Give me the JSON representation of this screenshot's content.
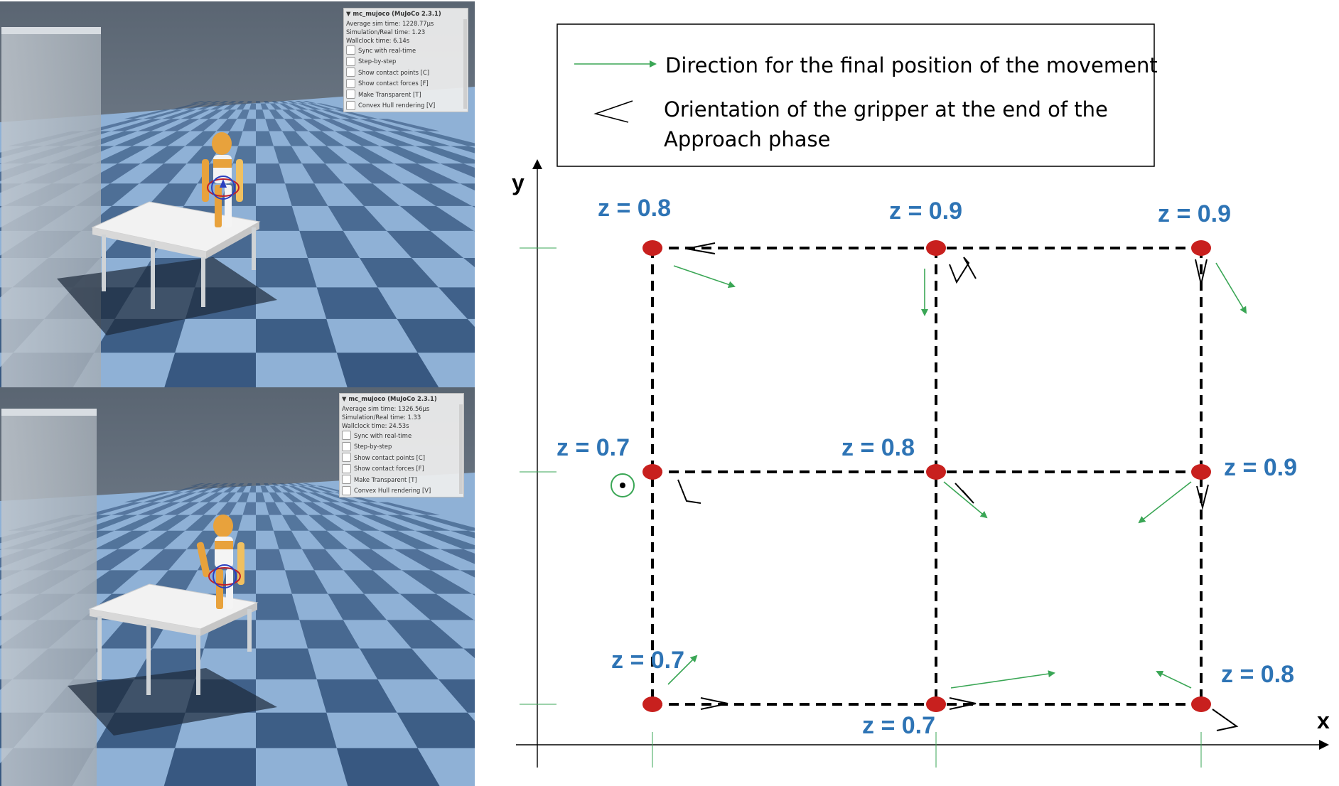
{
  "sim_panels": [
    {
      "title": "mc_mujoco (MuJoCo 2.3.1)",
      "stats": [
        "Average sim time: 1228.77µs",
        "Simulation/Real time: 1.23",
        "Wallclock time: 6.14s"
      ],
      "options": [
        "Sync with real-time",
        "Step-by-step",
        "Show contact points [C]",
        "Show contact forces [F]",
        "Make Transparent [T]",
        "Convex Hull rendering [V]"
      ]
    },
    {
      "title": "mc_mujoco (MuJoCo 2.3.1)",
      "stats": [
        "Average sim time: 1326.56µs",
        "Simulation/Real time: 1.33",
        "Wallclock time: 24.53s"
      ],
      "options": [
        "Sync with real-time",
        "Step-by-step",
        "Show contact points [C]",
        "Show contact forces [F]",
        "Make Transparent [T]",
        "Convex Hull rendering [V]"
      ]
    }
  ],
  "legend": {
    "arrow_text": "Direction for the final position of the movement",
    "gripper_text_line1": "Orientation of the gripper at the end of the",
    "gripper_text_line2": "Approach phase"
  },
  "axes": {
    "x_label": "x",
    "y_label": "y"
  },
  "grid": {
    "rows": [
      {
        "labels": [
          "z = 0.8",
          "z = 0.9",
          "z = 0.9"
        ]
      },
      {
        "labels": [
          "z = 0.7",
          "z = 0.8",
          "z = 0.9"
        ]
      },
      {
        "labels": [
          "z = 0.7",
          "z = 0.7",
          "z = 0.8"
        ]
      }
    ]
  },
  "colors": {
    "point": "#c8201e",
    "arrow": "#3aa655",
    "label": "#2e74b5",
    "grid_line": "#000000"
  }
}
